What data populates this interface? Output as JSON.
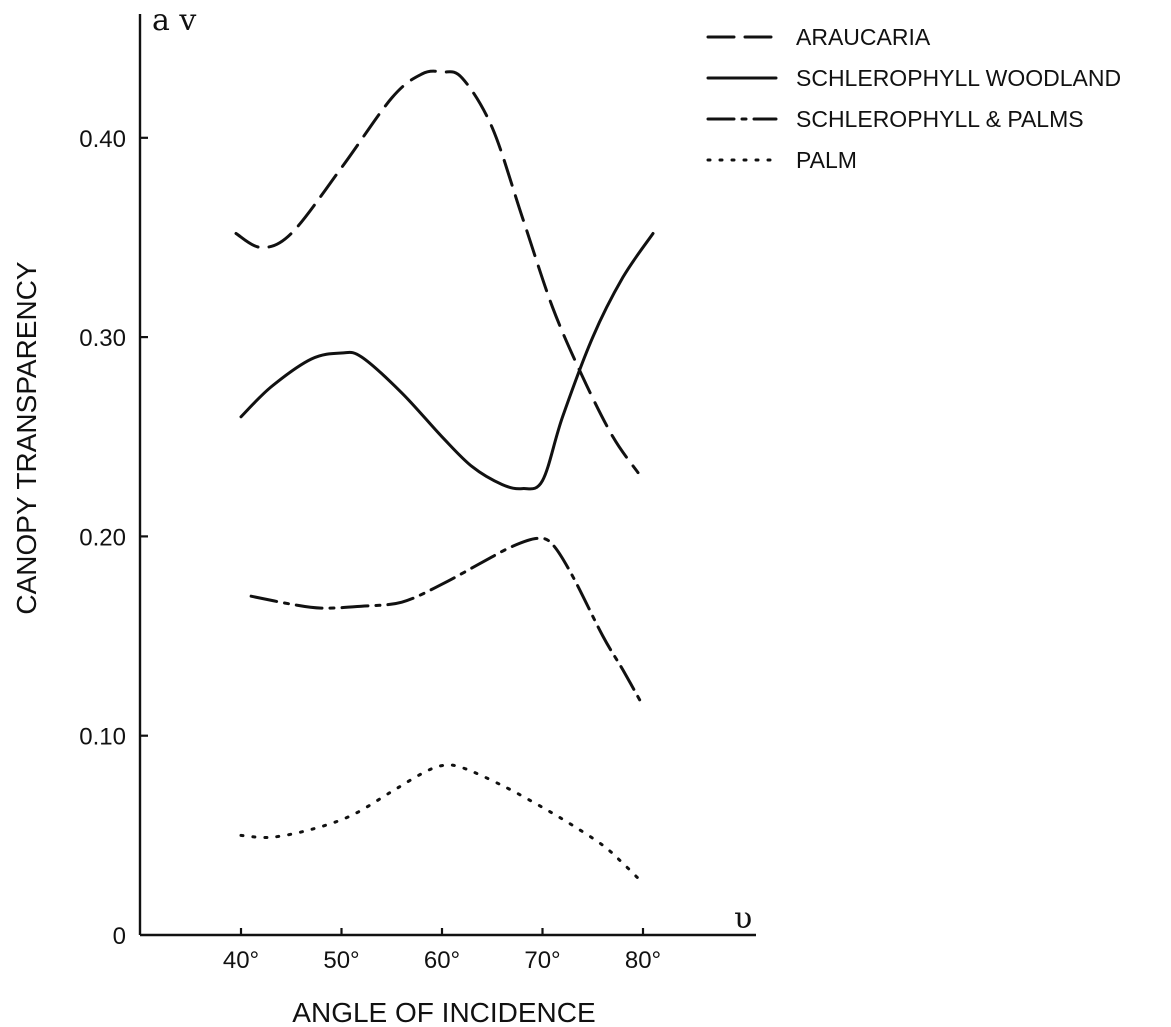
{
  "chart_data": {
    "type": "line",
    "title": "",
    "xlabel": "ANGLE OF INCIDENCE",
    "ylabel": "CANOPY TRANSPARENCY",
    "x_symbol": "υ",
    "y_symbol": "a v",
    "xlim": [
      30,
      90
    ],
    "ylim": [
      0,
      0.46
    ],
    "x_ticks": [
      {
        "value": 40,
        "label": "40°"
      },
      {
        "value": 50,
        "label": "50°"
      },
      {
        "value": 60,
        "label": "60°"
      },
      {
        "value": 70,
        "label": "70°"
      },
      {
        "value": 80,
        "label": "80°"
      }
    ],
    "y_ticks": [
      {
        "value": 0,
        "label": "0"
      },
      {
        "value": 0.1,
        "label": "0.10"
      },
      {
        "value": 0.2,
        "label": "0.20"
      },
      {
        "value": 0.3,
        "label": "0.30"
      },
      {
        "value": 0.4,
        "label": "0.40"
      }
    ],
    "grid": false,
    "legend_position": "top-right",
    "series": [
      {
        "name": "ARAUCARIA",
        "style": "dashed",
        "points": [
          [
            39.5,
            0.352
          ],
          [
            42,
            0.345
          ],
          [
            45,
            0.352
          ],
          [
            50,
            0.385
          ],
          [
            55,
            0.42
          ],
          [
            58,
            0.432
          ],
          [
            60,
            0.433
          ],
          [
            62,
            0.43
          ],
          [
            65,
            0.405
          ],
          [
            68,
            0.36
          ],
          [
            71,
            0.315
          ],
          [
            74,
            0.28
          ],
          [
            77,
            0.25
          ],
          [
            79.5,
            0.232
          ]
        ]
      },
      {
        "name": "SCHLEROPHYLL WOODLAND",
        "style": "solid",
        "points": [
          [
            40,
            0.26
          ],
          [
            43,
            0.275
          ],
          [
            47,
            0.289
          ],
          [
            50,
            0.292
          ],
          [
            52,
            0.29
          ],
          [
            56,
            0.272
          ],
          [
            60,
            0.25
          ],
          [
            63,
            0.235
          ],
          [
            66,
            0.226
          ],
          [
            68,
            0.224
          ],
          [
            70,
            0.228
          ],
          [
            72,
            0.26
          ],
          [
            75,
            0.3
          ],
          [
            78,
            0.33
          ],
          [
            81,
            0.352
          ]
        ]
      },
      {
        "name": "SCHLEROPHYLL & PALMS",
        "style": "dashdot",
        "points": [
          [
            41,
            0.17
          ],
          [
            45,
            0.166
          ],
          [
            48,
            0.164
          ],
          [
            52,
            0.165
          ],
          [
            56,
            0.167
          ],
          [
            60,
            0.176
          ],
          [
            64,
            0.187
          ],
          [
            67,
            0.195
          ],
          [
            69.5,
            0.199
          ],
          [
            71,
            0.196
          ],
          [
            73,
            0.18
          ],
          [
            76,
            0.15
          ],
          [
            78,
            0.133
          ],
          [
            80,
            0.115
          ]
        ]
      },
      {
        "name": "PALM",
        "style": "dotted",
        "points": [
          [
            40,
            0.05
          ],
          [
            43,
            0.049
          ],
          [
            47,
            0.053
          ],
          [
            51,
            0.06
          ],
          [
            55,
            0.072
          ],
          [
            58,
            0.081
          ],
          [
            60,
            0.085
          ],
          [
            62,
            0.084
          ],
          [
            66,
            0.075
          ],
          [
            70,
            0.064
          ],
          [
            73,
            0.055
          ],
          [
            76,
            0.045
          ],
          [
            78,
            0.036
          ],
          [
            80,
            0.026
          ]
        ]
      }
    ]
  }
}
